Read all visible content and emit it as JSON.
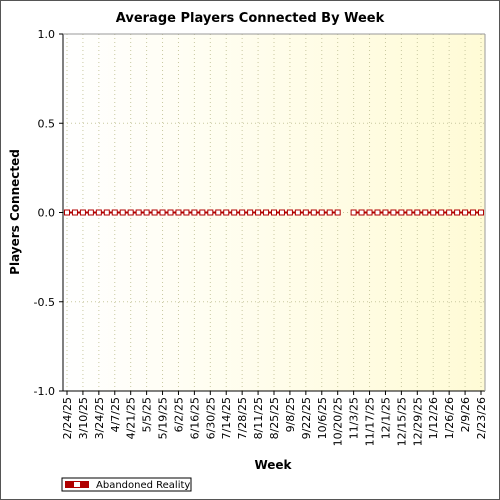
{
  "chart_data": {
    "type": "line",
    "title": "Average Players Connected By Week",
    "xlabel": "Week",
    "ylabel": "Players Connected",
    "ylim": [
      -1.0,
      1.0
    ],
    "yticks": [
      "1.0",
      "0.5",
      "0.0",
      "-0.5",
      "-1.0"
    ],
    "grid": true,
    "legend_position": "bottom-left",
    "x_tick_labels": [
      "2/24/25",
      "3/10/25",
      "3/24/25",
      "4/7/25",
      "4/21/25",
      "5/5/25",
      "5/19/25",
      "6/2/25",
      "6/16/25",
      "6/30/25",
      "7/14/25",
      "7/28/25",
      "8/11/25",
      "8/25/25",
      "9/8/25",
      "9/22/25",
      "10/6/25",
      "10/20/25",
      "11/3/25",
      "11/17/25",
      "12/1/25",
      "12/15/25",
      "12/29/25",
      "1/12/26",
      "1/26/26",
      "2/9/26",
      "2/23/26"
    ],
    "x": [
      "2/24/25",
      "3/3/25",
      "3/10/25",
      "3/17/25",
      "3/24/25",
      "3/31/25",
      "4/7/25",
      "4/14/25",
      "4/21/25",
      "4/28/25",
      "5/5/25",
      "5/12/25",
      "5/19/25",
      "5/26/25",
      "6/2/25",
      "6/9/25",
      "6/16/25",
      "6/23/25",
      "6/30/25",
      "7/7/25",
      "7/14/25",
      "7/21/25",
      "7/28/25",
      "8/4/25",
      "8/11/25",
      "8/18/25",
      "8/25/25",
      "9/1/25",
      "9/8/25",
      "9/15/25",
      "9/22/25",
      "9/29/25",
      "10/6/25",
      "10/13/25",
      "10/20/25",
      "10/27/25",
      "11/3/25",
      "11/10/25",
      "11/17/25",
      "11/24/25",
      "12/1/25",
      "12/8/25",
      "12/15/25",
      "12/22/25",
      "12/29/25",
      "1/5/26",
      "1/12/26",
      "1/19/26",
      "1/26/26",
      "2/2/26",
      "2/9/26",
      "2/16/26",
      "2/23/26"
    ],
    "series": [
      {
        "name": "Abandoned Reality",
        "color": "#b00000",
        "values": [
          0,
          0,
          0,
          0,
          0,
          0,
          0,
          0,
          0,
          0,
          0,
          0,
          0,
          0,
          0,
          0,
          0,
          0,
          0,
          0,
          0,
          0,
          0,
          0,
          0,
          0,
          0,
          0,
          0,
          0,
          0,
          0,
          0,
          0,
          0,
          null,
          0,
          0,
          0,
          0,
          0,
          0,
          0,
          0,
          0,
          0,
          0,
          0,
          0,
          0,
          0,
          0,
          0
        ]
      }
    ],
    "colors": {
      "plot_background_left": "#ffffff",
      "plot_background_right": "#fffbd6",
      "grid": "#c8c8a0",
      "axis": "#000000"
    }
  }
}
